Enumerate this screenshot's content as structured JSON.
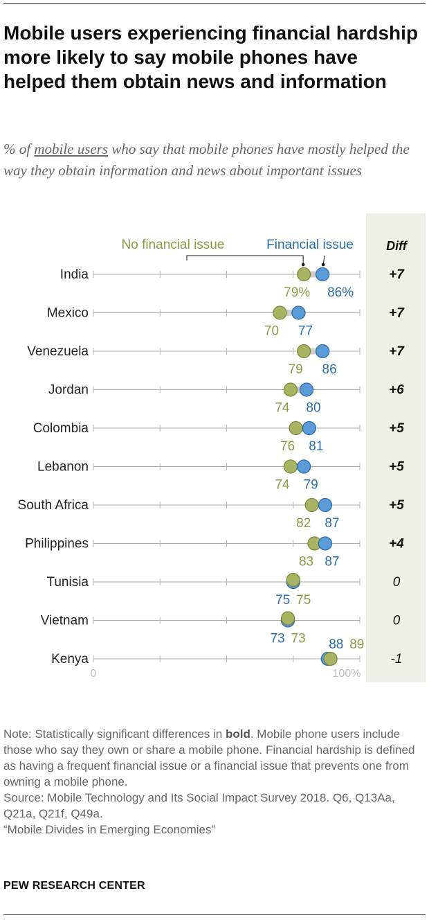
{
  "header": {
    "title": "Mobile users experiencing financial hardship more likely to say mobile phones have helped them obtain news and information",
    "subtitle_pre": "% of ",
    "subtitle_link": "mobile users",
    "subtitle_post": " who say that mobile phones have mostly helped the way they obtain information and news about important issues"
  },
  "colors": {
    "no_financial": "#a8b464",
    "no_financial_text": "#8f9a45",
    "financial": "#5a9bd8",
    "financial_text": "#2a6fa8",
    "diff_panel": "#efefe9"
  },
  "chart_data": {
    "type": "dot",
    "xlim": [
      0,
      100
    ],
    "x_tick_labels": [
      "0",
      "100%"
    ],
    "diff_header": "Diff",
    "legend": [
      "No financial issue",
      "Financial issue"
    ],
    "categories": [
      "India",
      "Mexico",
      "Venezuela",
      "Jordan",
      "Colombia",
      "Lebanon",
      "South Africa",
      "Philippines",
      "Tunisia",
      "Vietnam",
      "Kenya"
    ],
    "series": [
      {
        "name": "No financial issue",
        "values": [
          79,
          70,
          79,
          74,
          76,
          74,
          82,
          83,
          75,
          73,
          89
        ]
      },
      {
        "name": "Financial issue",
        "values": [
          86,
          77,
          86,
          80,
          81,
          79,
          87,
          87,
          75,
          73,
          88
        ]
      }
    ],
    "value_labels": {
      "no_financial": [
        "79%",
        "70",
        "79",
        "74",
        "76",
        "74",
        "82",
        "83",
        "75",
        "73",
        "89"
      ],
      "financial": [
        "86%",
        "77",
        "86",
        "80",
        "81",
        "79",
        "87",
        "87",
        "75",
        "73",
        "88"
      ]
    },
    "diff": [
      "+7",
      "+7",
      "+7",
      "+6",
      "+5",
      "+5",
      "+5",
      "+4",
      "0",
      "0",
      "-1"
    ],
    "diff_bold": [
      true,
      true,
      true,
      true,
      true,
      true,
      true,
      true,
      false,
      false,
      false
    ]
  },
  "footer": {
    "note_prefix": "Note: Statistically significant differences in ",
    "note_bold": "bold",
    "note_suffix": ". Mobile phone users include those who say they own or share a mobile phone. Financial hardship is defined as having a frequent financial issue or a financial issue that prevents one from owning a mobile phone.",
    "source": "Source: Mobile Technology and Its Social Impact Survey 2018. Q6, Q13Aa, Q21a, Q21f, Q49a.",
    "report": "“Mobile Divides in Emerging Economies”",
    "brand": "PEW RESEARCH CENTER"
  }
}
